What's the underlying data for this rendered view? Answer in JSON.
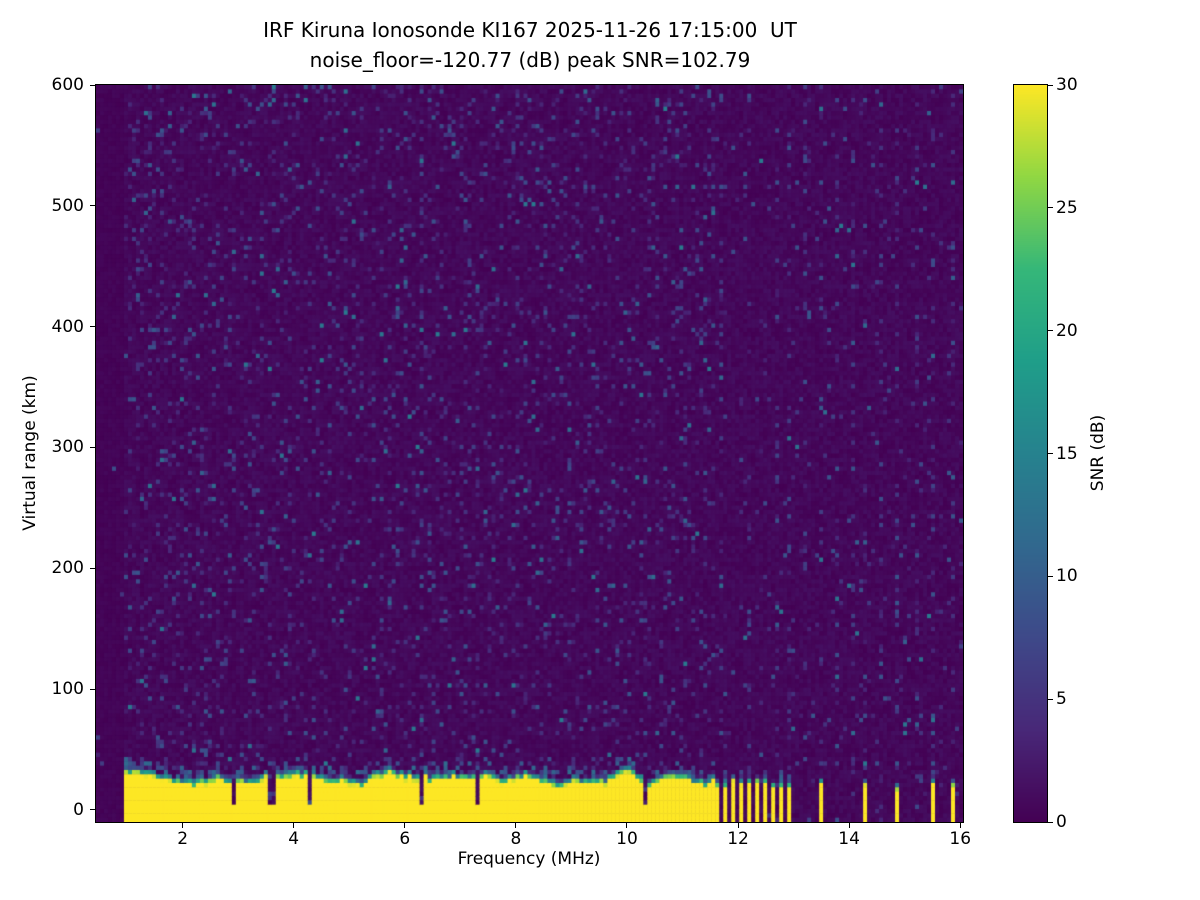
{
  "figure": {
    "title": "IRF Kiruna Ionosonde KI167 2025-11-26 17:15:00  UT",
    "subtitle": "noise_floor=-120.77 (dB) peak SNR=102.79",
    "xlabel": "Frequency (MHz)",
    "ylabel": "Virtual range (km)",
    "colorbar_label": "SNR (dB)"
  },
  "chart_data": {
    "type": "heatmap",
    "title": "IRF Kiruna Ionosonde KI167 2025-11-26 17:15:00  UT",
    "subtitle": "noise_floor=-120.77 (dB) peak SNR=102.79",
    "xlabel": "Frequency (MHz)",
    "ylabel": "Virtual range (km)",
    "colorbar_label": "SNR (dB)",
    "colormap": "viridis",
    "xlim": [
      0.44,
      16.05
    ],
    "ylim": [
      -10,
      600
    ],
    "clim": [
      0,
      30
    ],
    "xticks": [
      2,
      4,
      6,
      8,
      10,
      12,
      14,
      16
    ],
    "yticks": [
      0,
      100,
      200,
      300,
      400,
      500,
      600
    ],
    "colorbar_ticks": [
      0,
      5,
      10,
      15,
      20,
      25,
      30
    ],
    "noise_floor_db": -120.77,
    "peak_snr_db": 102.79,
    "features": {
      "data_start_mhz": 0.95,
      "background": {
        "snr_range_db": [
          0,
          1.5
        ],
        "speckle_density_low_freq": 0.1,
        "speckle_density_high_freq": 0.035,
        "speckle_snr_max_db": 14
      },
      "ground_echo": {
        "freq_range_mhz": [
          0.95,
          11.6
        ],
        "saturated_snr_db": 30,
        "top_km_mean": 28,
        "top_km_jitter": 11,
        "transition_thickness_km": 8,
        "left_edge_boost_below_mhz": 1.8,
        "notches_mhz": [
          [
            2.95,
            0.06
          ],
          [
            3.6,
            0.14
          ],
          [
            4.3,
            0.08
          ],
          [
            6.3,
            0.1
          ],
          [
            7.3,
            0.06
          ],
          [
            10.35,
            0.05
          ]
        ]
      },
      "intermittent_echo": {
        "alternating_range_mhz": [
          11.6,
          13.05
        ],
        "alternation_period_mhz": 0.145,
        "isolated_stripes_mhz": [
          [
            13.5,
            0.09
          ],
          [
            14.3,
            0.09
          ],
          [
            14.87,
            0.08
          ],
          [
            15.5,
            0.08
          ],
          [
            15.9,
            0.07
          ]
        ],
        "top_km_mean": 24
      },
      "rfi_columns_mhz": [
        2.4,
        3.1,
        4.4,
        6.3,
        7.3,
        10.3,
        11.7,
        11.95,
        12.2,
        12.45,
        12.7,
        12.95,
        13.2,
        13.5,
        13.8,
        14.05,
        14.3,
        14.6,
        14.87,
        15.2,
        15.5,
        15.9
      ],
      "rfi_column_width_mhz": 0.06,
      "rfi_speckle_density": 0.16
    }
  }
}
